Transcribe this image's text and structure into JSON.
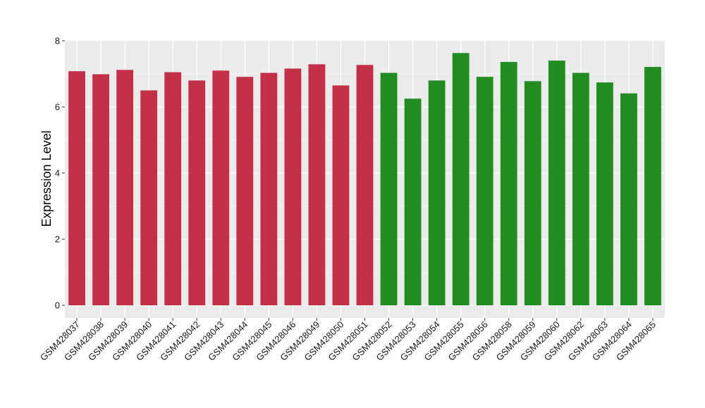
{
  "chart_data": {
    "type": "bar",
    "ylabel": "Expression Level",
    "xlabel": "",
    "ylim": [
      0,
      8
    ],
    "yticks": [
      "0",
      "2",
      "4",
      "6",
      "8"
    ],
    "grid": true,
    "colors": {
      "group_a": "#c4304a",
      "group_b": "#228b22",
      "panel": "#ebebeb",
      "gridline": "#ffffff"
    },
    "categories": [
      "GSM428037",
      "GSM428038",
      "GSM428039",
      "GSM428040",
      "GSM428041",
      "GSM428042",
      "GSM428043",
      "GSM428044",
      "GSM428045",
      "GSM428046",
      "GSM428049",
      "GSM428050",
      "GSM428051",
      "GSM428052",
      "GSM428053",
      "GSM428054",
      "GSM428055",
      "GSM428056",
      "GSM428058",
      "GSM428059",
      "GSM428060",
      "GSM428062",
      "GSM428063",
      "GSM428064",
      "GSM428065"
    ],
    "values": [
      7.08,
      6.99,
      7.12,
      6.5,
      7.05,
      6.8,
      7.1,
      6.91,
      7.03,
      7.16,
      7.29,
      6.65,
      7.27,
      7.03,
      6.25,
      6.8,
      7.63,
      6.91,
      7.36,
      6.78,
      7.4,
      7.03,
      6.74,
      6.41,
      7.21
    ],
    "groups": [
      "a",
      "a",
      "a",
      "a",
      "a",
      "a",
      "a",
      "a",
      "a",
      "a",
      "a",
      "a",
      "a",
      "b",
      "b",
      "b",
      "b",
      "b",
      "b",
      "b",
      "b",
      "b",
      "b",
      "b",
      "b"
    ]
  }
}
